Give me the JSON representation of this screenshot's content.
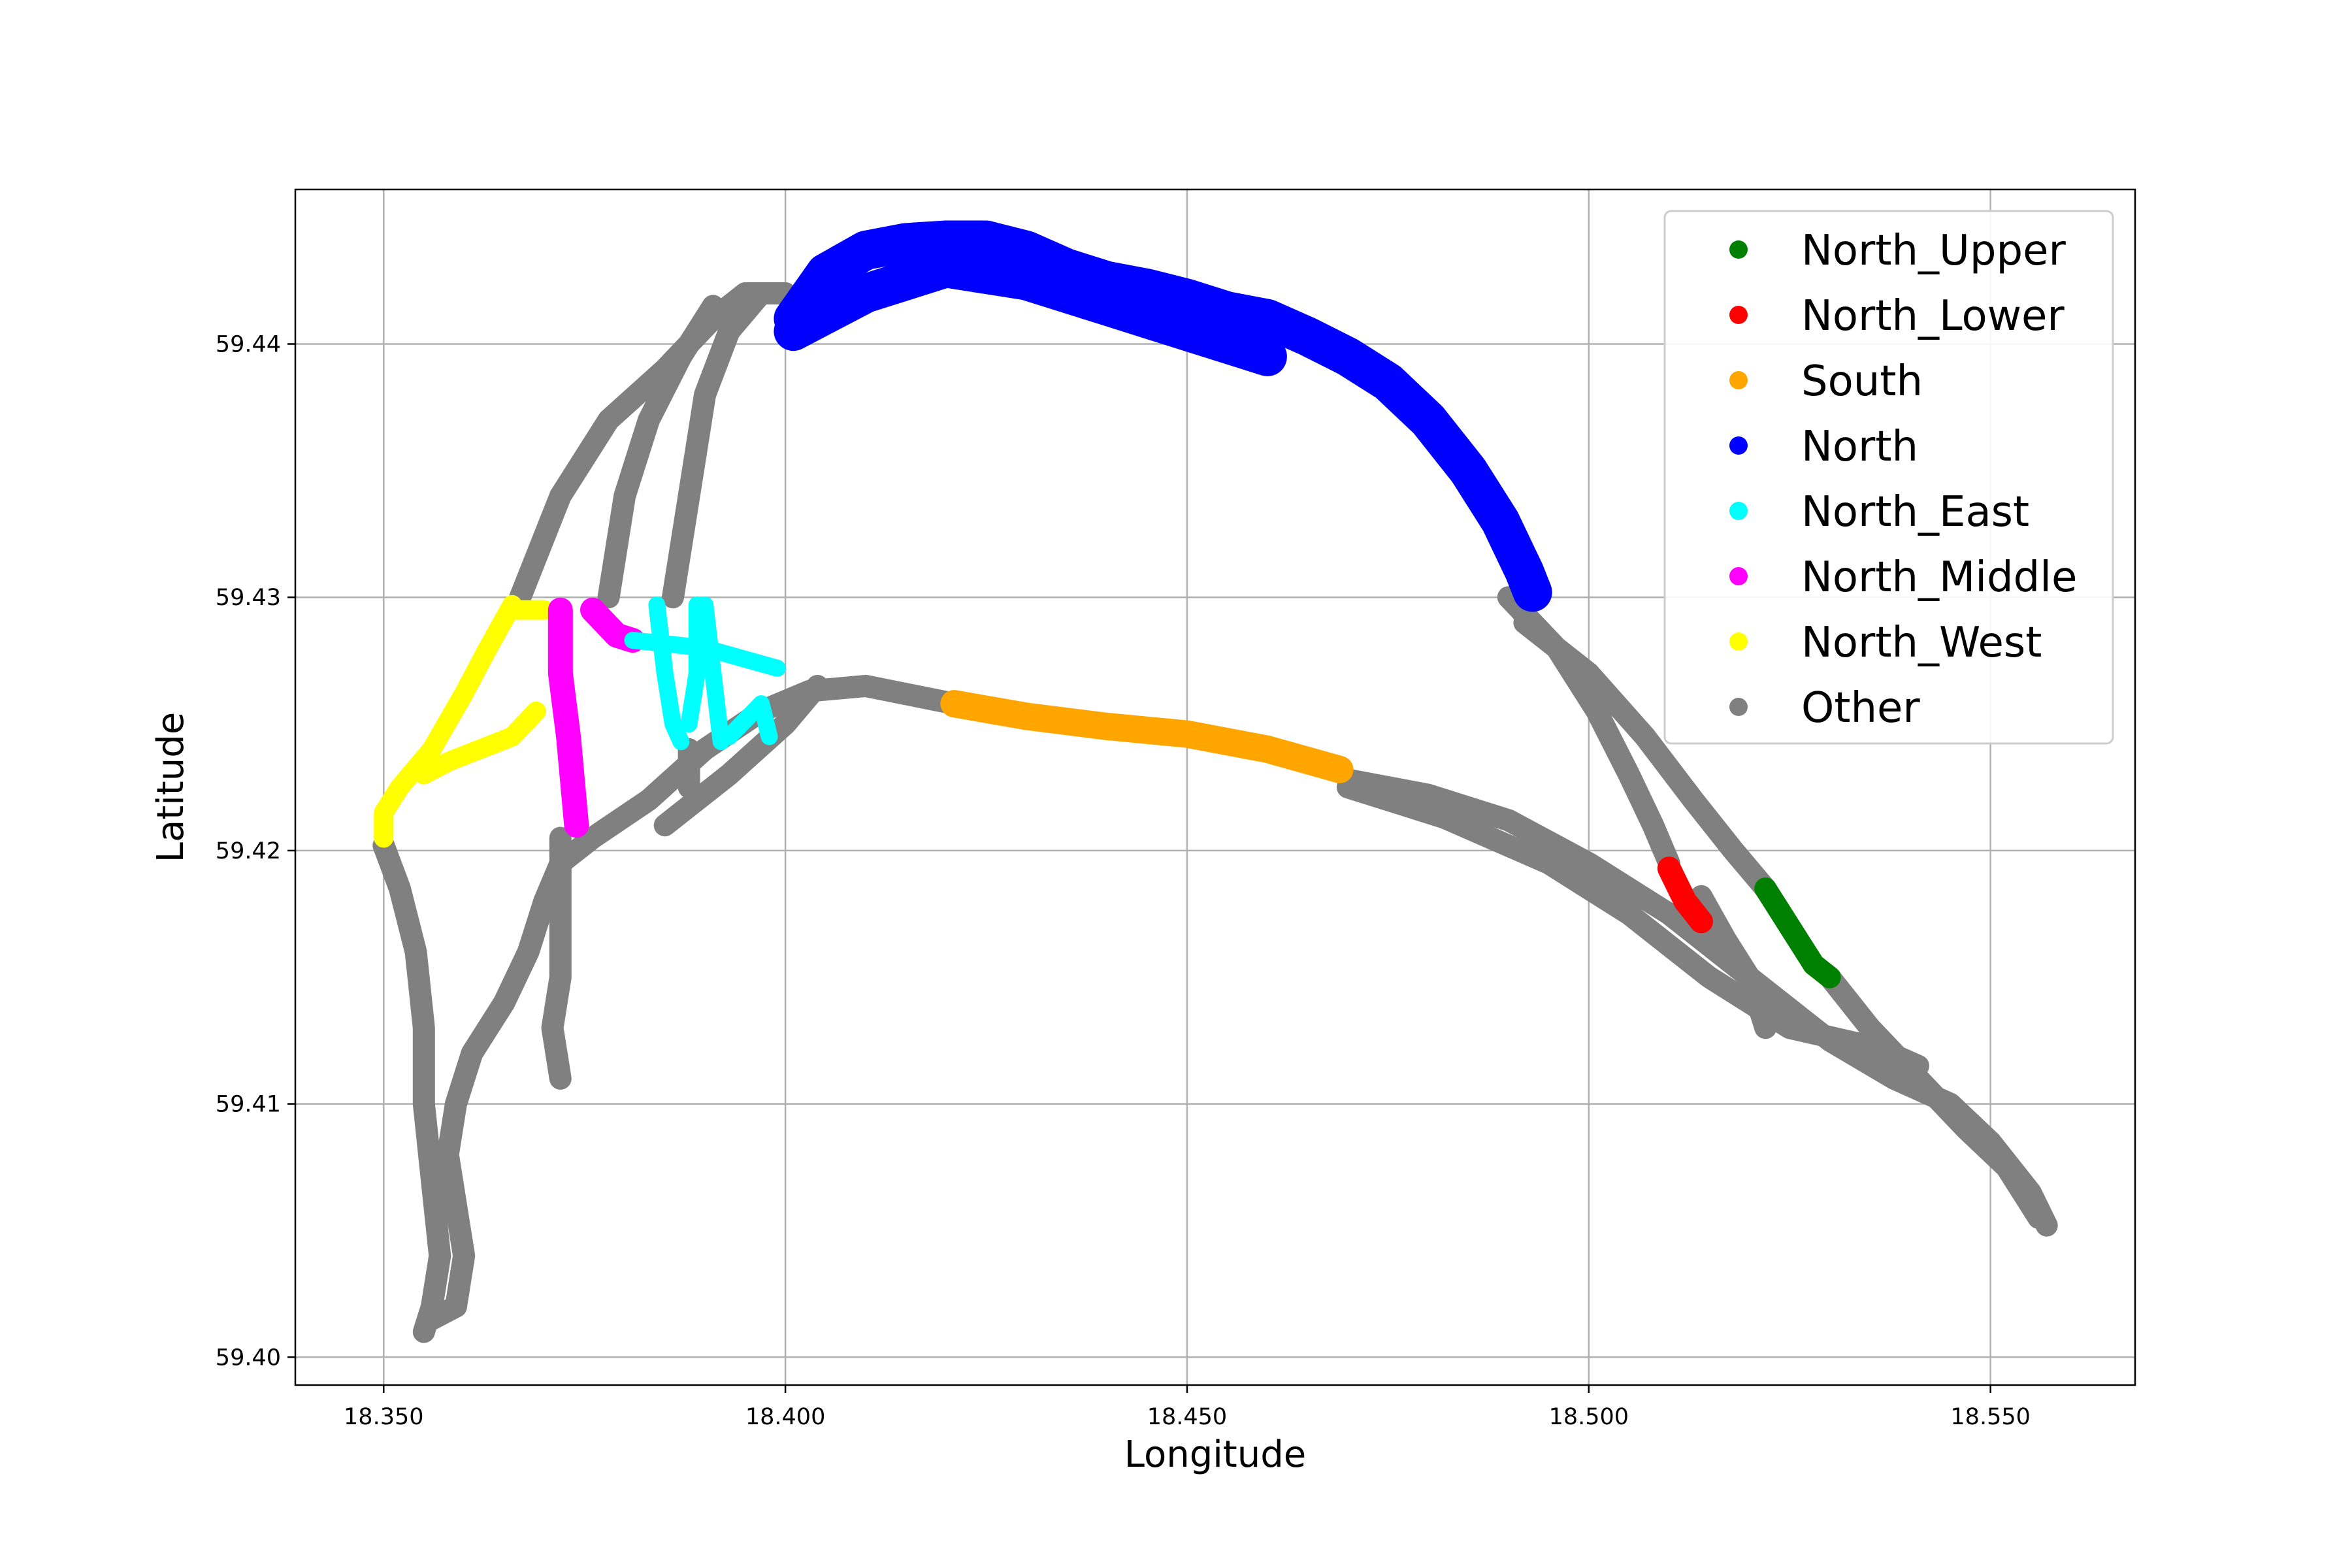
{
  "chart_data": {
    "type": "scatter",
    "title": "",
    "xlabel": "Longitude",
    "ylabel": "Latitude",
    "xlim": [
      18.339,
      18.568
    ],
    "ylim": [
      59.3989,
      59.4461
    ],
    "x_ticks": [
      "18.350",
      "18.400",
      "18.450",
      "18.500",
      "18.550"
    ],
    "y_ticks": [
      "59.40",
      "59.41",
      "59.42",
      "59.43",
      "59.44"
    ],
    "grid": true,
    "legend_position": "upper right",
    "series": [
      {
        "name": "Other",
        "color": "#808080",
        "paths": [
          [
            [
              18.35,
              59.4202
            ],
            [
              18.352,
              59.4185
            ],
            [
              18.354,
              59.416
            ],
            [
              18.355,
              59.413
            ],
            [
              18.355,
              59.41
            ],
            [
              18.356,
              59.407
            ],
            [
              18.357,
              59.404
            ],
            [
              18.356,
              59.402
            ],
            [
              18.355,
              59.401
            ]
          ],
          [
            [
              18.356,
              59.4015
            ],
            [
              18.359,
              59.402
            ],
            [
              18.36,
              59.404
            ],
            [
              18.359,
              59.406
            ],
            [
              18.358,
              59.408
            ],
            [
              18.359,
              59.41
            ],
            [
              18.361,
              59.412
            ],
            [
              18.365,
              59.414
            ],
            [
              18.368,
              59.416
            ],
            [
              18.37,
              59.418
            ],
            [
              18.372,
              59.4195
            ],
            [
              18.376,
              59.4205
            ],
            [
              18.383,
              59.422
            ],
            [
              18.39,
              59.424
            ],
            [
              18.397,
              59.4255
            ],
            [
              18.403,
              59.4263
            ],
            [
              18.41,
              59.4265
            ],
            [
              18.421,
              59.4258
            ]
          ],
          [
            [
              18.372,
              59.4205
            ],
            [
              18.372,
              59.415
            ],
            [
              18.371,
              59.413
            ],
            [
              18.372,
              59.411
            ]
          ],
          [
            [
              18.385,
              59.421
            ],
            [
              18.393,
              59.423
            ],
            [
              18.4,
              59.425
            ],
            [
              18.404,
              59.4265
            ]
          ],
          [
            [
              18.388,
              59.4225
            ],
            [
              18.388,
              59.424
            ]
          ],
          [
            [
              18.367,
              59.43
            ],
            [
              18.372,
              59.434
            ],
            [
              18.378,
              59.437
            ],
            [
              18.385,
              59.439
            ],
            [
              18.391,
              59.441
            ],
            [
              18.395,
              59.442
            ],
            [
              18.4,
              59.442
            ],
            [
              18.401,
              59.4415
            ]
          ],
          [
            [
              18.378,
              59.43
            ],
            [
              18.38,
              59.434
            ],
            [
              18.383,
              59.437
            ],
            [
              18.387,
              59.4395
            ],
            [
              18.391,
              59.4415
            ]
          ],
          [
            [
              18.386,
              59.43
            ],
            [
              18.388,
              59.434
            ],
            [
              18.39,
              59.438
            ],
            [
              18.393,
              59.4405
            ],
            [
              18.397,
              59.442
            ]
          ],
          [
            [
              18.47,
              59.4228
            ],
            [
              18.48,
              59.4222
            ],
            [
              18.49,
              59.4212
            ],
            [
              18.5,
              59.4195
            ],
            [
              18.51,
              59.4175
            ],
            [
              18.52,
              59.415
            ],
            [
              18.53,
              59.4125
            ],
            [
              18.538,
              59.411
            ],
            [
              18.545,
              59.41
            ],
            [
              18.55,
              59.4085
            ],
            [
              18.555,
              59.4065
            ],
            [
              18.557,
              59.4052
            ]
          ],
          [
            [
              18.47,
              59.4225
            ],
            [
              18.482,
              59.4213
            ],
            [
              18.495,
              59.4195
            ],
            [
              18.505,
              59.4175
            ],
            [
              18.515,
              59.415
            ],
            [
              18.525,
              59.413
            ],
            [
              18.536,
              59.4122
            ],
            [
              18.541,
              59.4115
            ]
          ],
          [
            [
              18.49,
              59.43
            ],
            [
              18.496,
              59.428
            ],
            [
              18.501,
              59.4255
            ],
            [
              18.505,
              59.423
            ],
            [
              18.508,
              59.421
            ],
            [
              18.51,
              59.4195
            ]
          ],
          [
            [
              18.492,
              59.429
            ],
            [
              18.5,
              59.427
            ],
            [
              18.507,
              59.4245
            ],
            [
              18.513,
              59.422
            ],
            [
              18.518,
              59.42
            ],
            [
              18.522,
              59.4185
            ]
          ],
          [
            [
              18.514,
              59.4182
            ],
            [
              18.517,
              59.4165
            ],
            [
              18.52,
              59.415
            ],
            [
              18.522,
              59.413
            ]
          ],
          [
            [
              18.53,
              59.415
            ],
            [
              18.535,
              59.413
            ],
            [
              18.541,
              59.411
            ],
            [
              18.547,
              59.409
            ],
            [
              18.552,
              59.4075
            ],
            [
              18.556,
              59.4055
            ]
          ]
        ]
      },
      {
        "name": "North",
        "color": "#0000ff",
        "paths": [
          [
            [
              18.401,
              59.441
            ],
            [
              18.405,
              59.4428
            ],
            [
              18.41,
              59.4437
            ],
            [
              18.415,
              59.444
            ],
            [
              18.42,
              59.4441
            ],
            [
              18.425,
              59.4441
            ],
            [
              18.43,
              59.4437
            ],
            [
              18.435,
              59.443
            ],
            [
              18.44,
              59.4425
            ],
            [
              18.445,
              59.4422
            ],
            [
              18.45,
              59.4418
            ],
            [
              18.455,
              59.4413
            ],
            [
              18.46,
              59.441
            ],
            [
              18.465,
              59.4403
            ],
            [
              18.47,
              59.4395
            ],
            [
              18.475,
              59.4385
            ],
            [
              18.48,
              59.437
            ],
            [
              18.485,
              59.435
            ],
            [
              18.489,
              59.433
            ],
            [
              18.492,
              59.431
            ],
            [
              18.493,
              59.4302
            ]
          ],
          [
            [
              18.401,
              59.4405
            ],
            [
              18.41,
              59.442
            ],
            [
              18.42,
              59.443
            ],
            [
              18.43,
              59.4425
            ],
            [
              18.44,
              59.4415
            ],
            [
              18.45,
              59.4405
            ],
            [
              18.46,
              59.4395
            ]
          ]
        ]
      },
      {
        "name": "South",
        "color": "#ffa500",
        "paths": [
          [
            [
              18.421,
              59.4258
            ],
            [
              18.43,
              59.4253
            ],
            [
              18.44,
              59.4249
            ],
            [
              18.45,
              59.4246
            ],
            [
              18.46,
              59.424
            ],
            [
              18.469,
              59.4232
            ]
          ]
        ]
      },
      {
        "name": "North_West",
        "color": "#ffff00",
        "paths": [
          [
            [
              18.366,
              59.4297
            ],
            [
              18.363,
              59.428
            ],
            [
              18.36,
              59.4262
            ],
            [
              18.356,
              59.424
            ],
            [
              18.352,
              59.4225
            ],
            [
              18.35,
              59.4215
            ],
            [
              18.35,
              59.4205
            ]
          ],
          [
            [
              18.369,
              59.4255
            ],
            [
              18.366,
              59.4245
            ],
            [
              18.362,
              59.424
            ],
            [
              18.358,
              59.4235
            ],
            [
              18.355,
              59.423
            ]
          ],
          [
            [
              18.366,
              59.4295
            ],
            [
              18.37,
              59.4295
            ]
          ]
        ]
      },
      {
        "name": "North_Middle",
        "color": "#ff00ff",
        "paths": [
          [
            [
              18.372,
              59.4295
            ],
            [
              18.372,
              59.427
            ],
            [
              18.373,
              59.4245
            ],
            [
              18.374,
              59.421
            ]
          ],
          [
            [
              18.376,
              59.4295
            ],
            [
              18.379,
              59.4285
            ],
            [
              18.381,
              59.4283
            ]
          ]
        ]
      },
      {
        "name": "North_East",
        "color": "#00ffff",
        "paths": [
          [
            [
              18.384,
              59.4297
            ],
            [
              18.385,
              59.427
            ],
            [
              18.386,
              59.425
            ],
            [
              18.387,
              59.4243
            ]
          ],
          [
            [
              18.389,
              59.4297
            ],
            [
              18.389,
              59.427
            ],
            [
              18.388,
              59.425
            ]
          ],
          [
            [
              18.39,
              59.4297
            ],
            [
              18.391,
              59.427
            ],
            [
              18.392,
              59.4243
            ]
          ],
          [
            [
              18.381,
              59.4283
            ],
            [
              18.39,
              59.428
            ],
            [
              18.399,
              59.4272
            ]
          ],
          [
            [
              18.393,
              59.4245
            ],
            [
              18.397,
              59.4258
            ],
            [
              18.398,
              59.4245
            ]
          ]
        ]
      },
      {
        "name": "North_Lower",
        "color": "#ff0000",
        "paths": [
          [
            [
              18.51,
              59.4193
            ],
            [
              18.512,
              59.418
            ],
            [
              18.514,
              59.4172
            ]
          ]
        ]
      },
      {
        "name": "North_Upper",
        "color": "#008000",
        "paths": [
          [
            [
              18.522,
              59.4185
            ],
            [
              18.525,
              59.417
            ],
            [
              18.528,
              59.4155
            ],
            [
              18.53,
              59.415
            ]
          ]
        ]
      }
    ],
    "legend_order": [
      "North_Upper",
      "North_Lower",
      "South",
      "North",
      "North_East",
      "North_Middle",
      "North_West",
      "Other"
    ]
  }
}
